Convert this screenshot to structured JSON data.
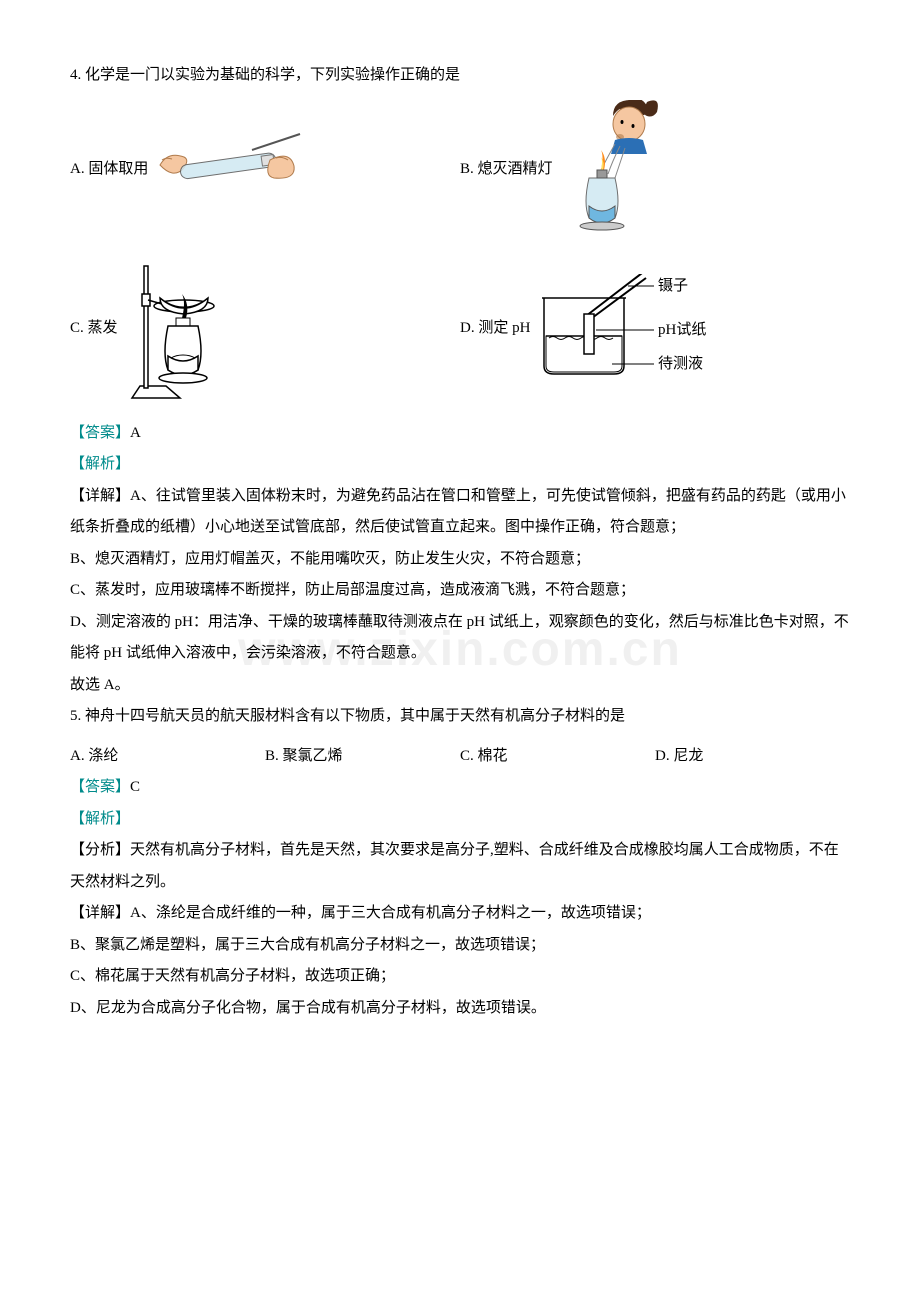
{
  "q4": {
    "stem": "4. 化学是一门以实验为基础的科学，下列实验操作正确的是",
    "opts": {
      "A": "A. 固体取用",
      "B": "B. 熄灭酒精灯",
      "C": "C. 蒸发",
      "D": "D. 测定 pH"
    },
    "figD": {
      "l1": "镊子",
      "l2": "pH试纸",
      "l3": "待测液"
    },
    "answer_label": "【答案】",
    "answer": "A",
    "analysis_label": "【解析】",
    "detail_label": "【详解】",
    "detail_A": "A、往试管里装入固体粉末时，为避免药品沾在管口和管壁上，可先使试管倾斜，把盛有药品的药匙（或用小纸条折叠成的纸槽）小心地送至试管底部，然后使试管直立起来。图中操作正确，符合题意；",
    "detail_B": "B、熄灭酒精灯，应用灯帽盖灭，不能用嘴吹灭，防止发生火灾，不符合题意；",
    "detail_C": "C、蒸发时，应用玻璃棒不断搅拌，防止局部温度过高，造成液滴飞溅，不符合题意；",
    "detail_D": "D、测定溶液的 pH：用洁净、干燥的玻璃棒蘸取待测液点在 pH 试纸上，观察颜色的变化，然后与标准比色卡对照，不能将 pH 试纸伸入溶液中，会污染溶液，不符合题意。",
    "conclusion": "故选 A。"
  },
  "q5": {
    "stem": "5. 神舟十四号航天员的航天服材料含有以下物质，其中属于天然有机高分子材料的是",
    "opts": {
      "A": "A. 涤纶",
      "B": "B. 聚氯乙烯",
      "C": "C. 棉花",
      "D": "D. 尼龙"
    },
    "answer_label": "【答案】",
    "answer": "C",
    "analysis_label": "【解析】",
    "fenxi_label": "【分析】",
    "fenxi": "天然有机高分子材料，首先是天然，其次要求是高分子,塑料、合成纤维及合成橡胶均属人工合成物质，不在天然材料之列。",
    "detail_label": "【详解】",
    "detail_A": "A、涤纶是合成纤维的一种，属于三大合成有机高分子材料之一，故选项错误；",
    "detail_B": "B、聚氯乙烯是塑料，属于三大合成有机高分子材料之一，故选项错误；",
    "detail_C": "C、棉花属于天然有机高分子材料，故选项正确；",
    "detail_D": "D、尼龙为合成高分子化合物，属于合成有机高分子材料，故选项错误。"
  },
  "colors": {
    "answer": "#008b8b",
    "skin": "#f5c7a1",
    "tube": "#d0e8f2",
    "hair": "#4a2b18",
    "shirt": "#2b6fb5",
    "flame_o": "#ff8c1a",
    "flame_i": "#ffe066",
    "lamp": "#6fb7e0"
  }
}
